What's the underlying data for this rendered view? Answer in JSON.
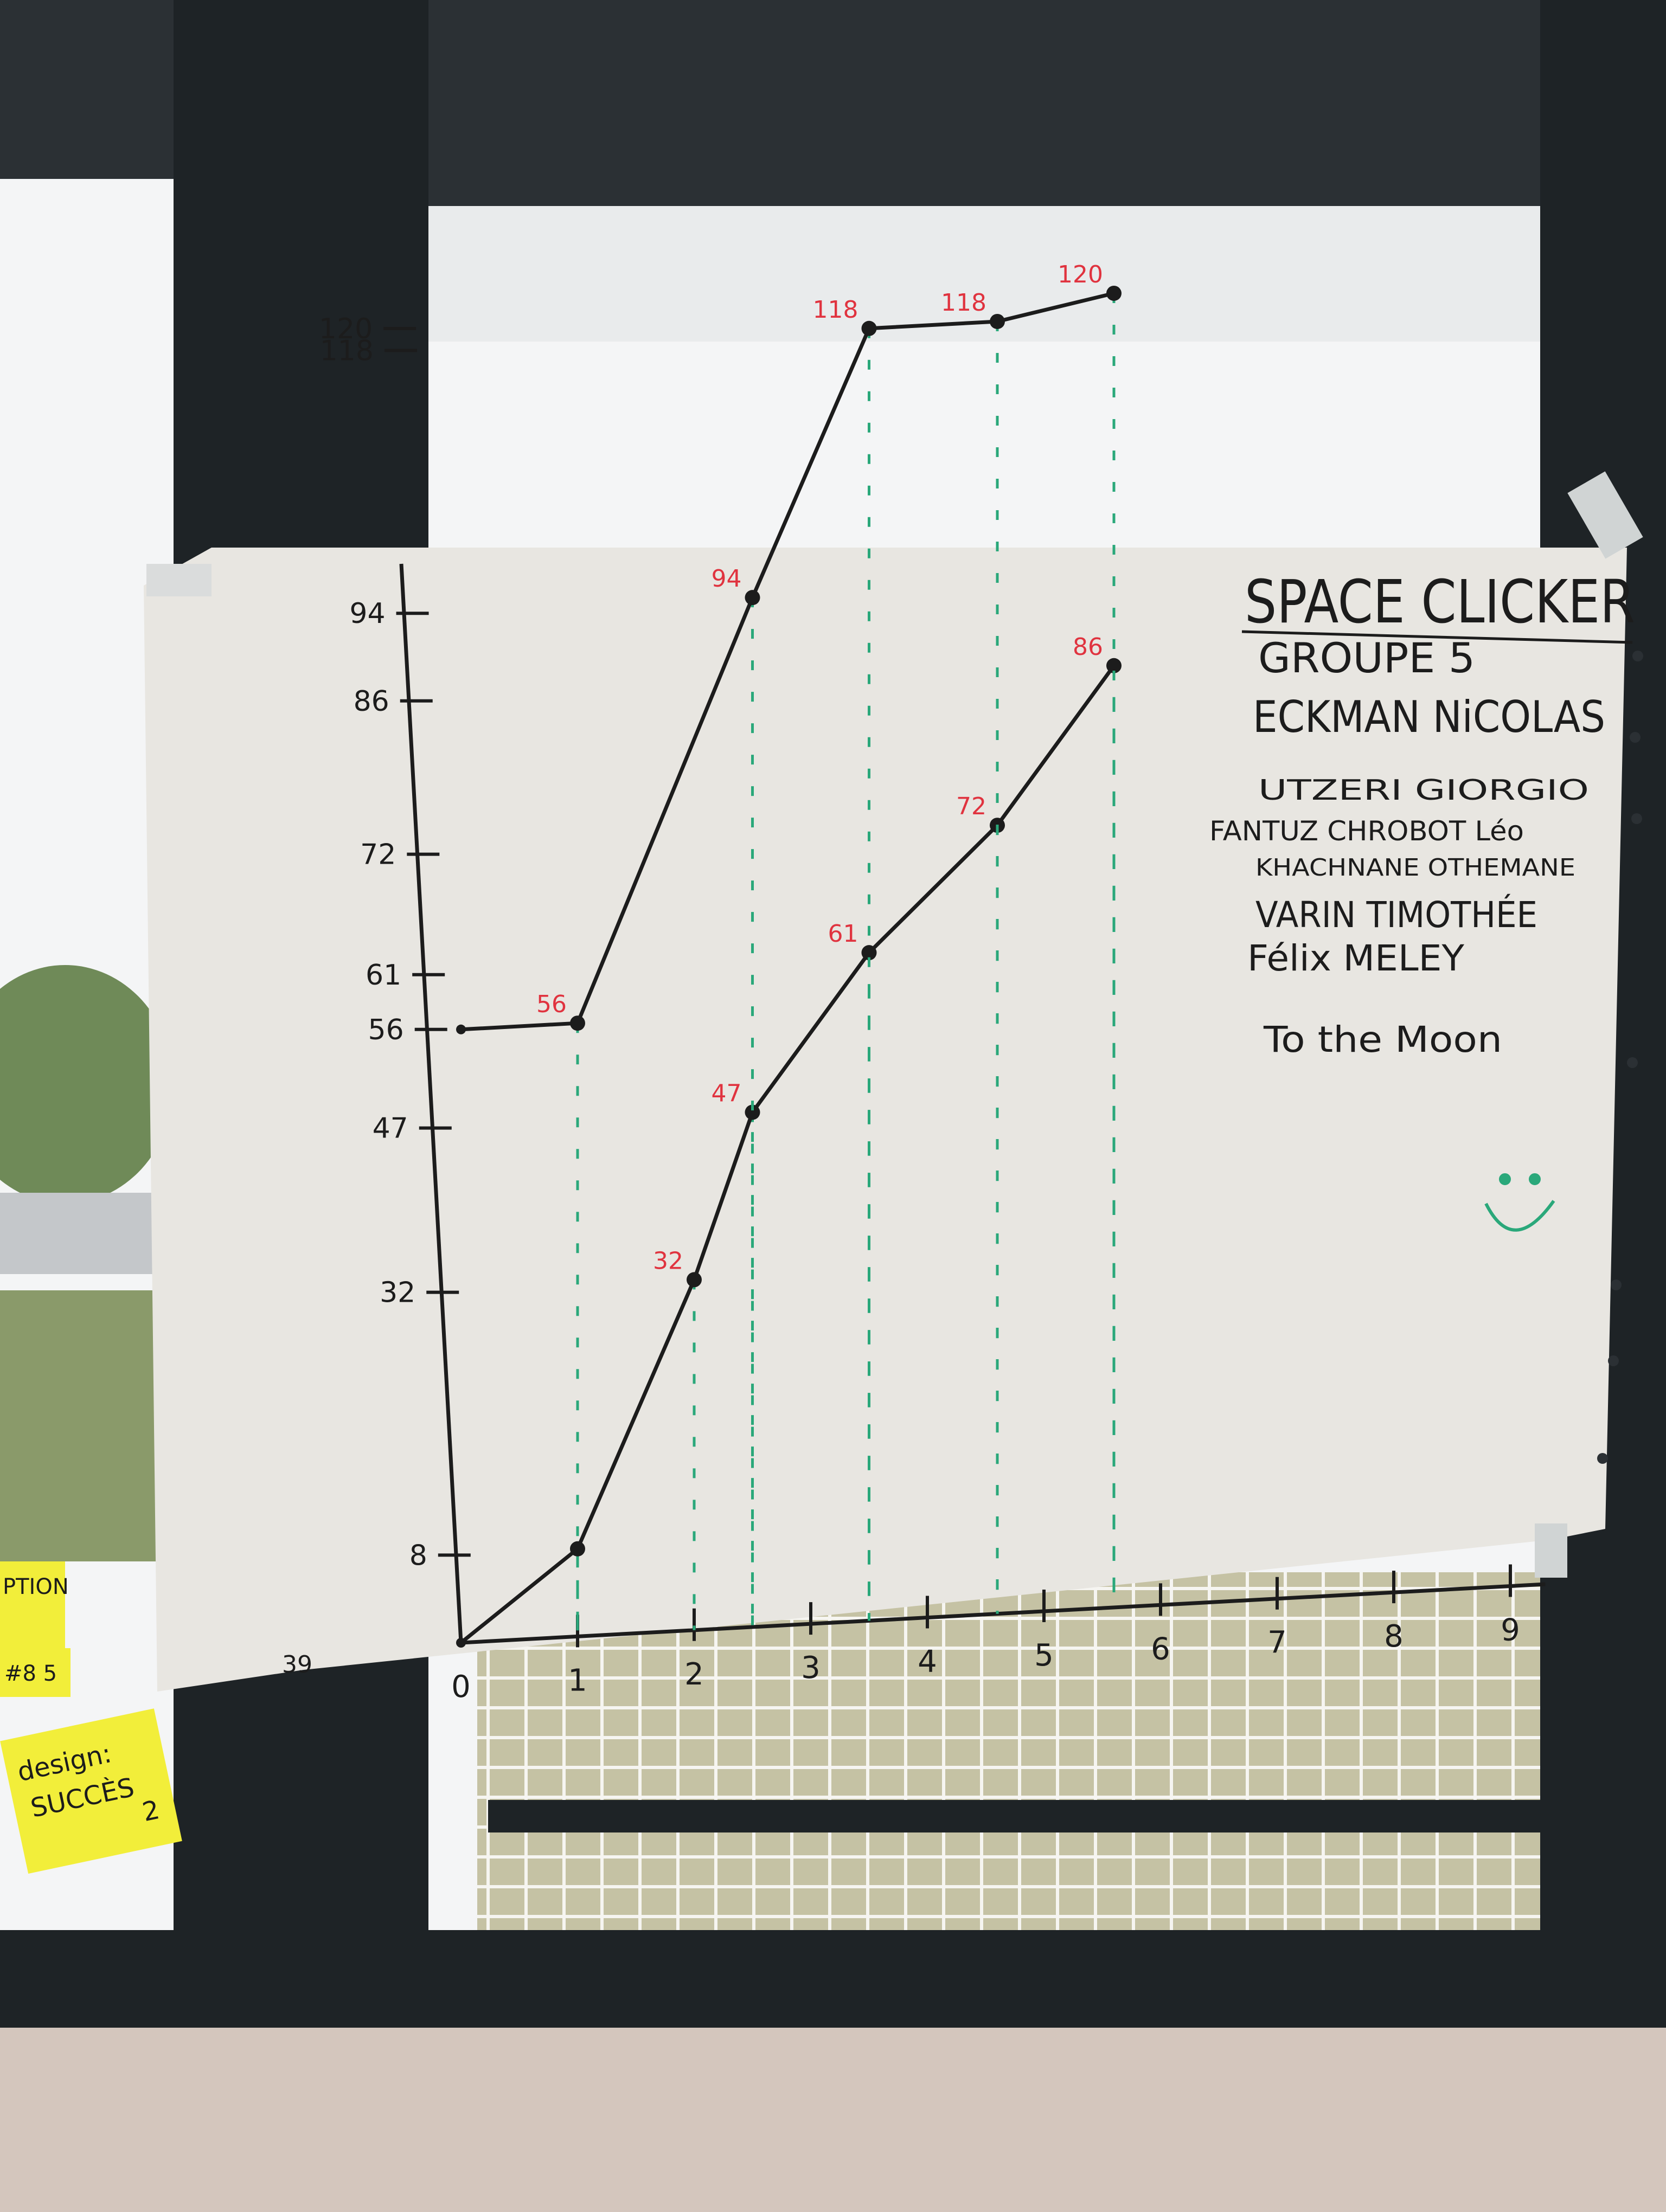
{
  "colors": {
    "paper": "#e8e6e1",
    "ink": "#1c1c1c",
    "red_ink": "#e0333f",
    "green_ink": "#2aa87a",
    "sticky": "#f2ee3a",
    "frame": "#1e2326"
  },
  "poster": {
    "title": "SPACE CLICKER",
    "group": "GROUPE 5",
    "members": [
      "ECKMAN NiCOLAS",
      "UTZERI GIORGIO",
      "FANTUZ CHROBOT Léo",
      "KHACHNANE OTHEMANE",
      "VARIN TIMOTHÉE",
      "Félix MELEY"
    ],
    "motto": "To the Moon",
    "smiley_icon": "smiley-face-icon"
  },
  "stray_label": "39",
  "sticky_notes": [
    {
      "text_lines": [
        "PTION"
      ]
    },
    {
      "text_lines": [
        "#8 5"
      ]
    },
    {
      "text_lines": [
        "design:",
        "SUCCÈS",
        "2"
      ]
    }
  ],
  "chart_data": {
    "type": "line",
    "title": "SPACE CLICKER",
    "x_ticks": [
      "0",
      "1",
      "2",
      "3",
      "4",
      "5",
      "6",
      "7",
      "8",
      "9"
    ],
    "y_ticks": [
      "8",
      "32",
      "47",
      "56",
      "61",
      "72",
      "86",
      "94",
      "118",
      "120"
    ],
    "series": [
      {
        "points": [
          {
            "x": 0,
            "y": 0
          },
          {
            "x": 1,
            "y": 8
          },
          {
            "x": 2,
            "y": 32
          },
          {
            "x": 2.5,
            "y": 47
          },
          {
            "x": 3.5,
            "y": 61
          },
          {
            "x": 4.6,
            "y": 72
          },
          {
            "x": 5.6,
            "y": 86
          }
        ],
        "labels": [
          "",
          "",
          "32",
          "47",
          "61",
          "72",
          "86"
        ]
      },
      {
        "points": [
          {
            "x": 0,
            "y": 56
          },
          {
            "x": 1,
            "y": 56
          },
          {
            "x": 2.5,
            "y": 94
          },
          {
            "x": 3.5,
            "y": 118
          },
          {
            "x": 4.6,
            "y": 118
          },
          {
            "x": 5.6,
            "y": 120
          }
        ],
        "labels": [
          "",
          "56",
          "94",
          "118",
          "118",
          "120"
        ]
      }
    ]
  }
}
